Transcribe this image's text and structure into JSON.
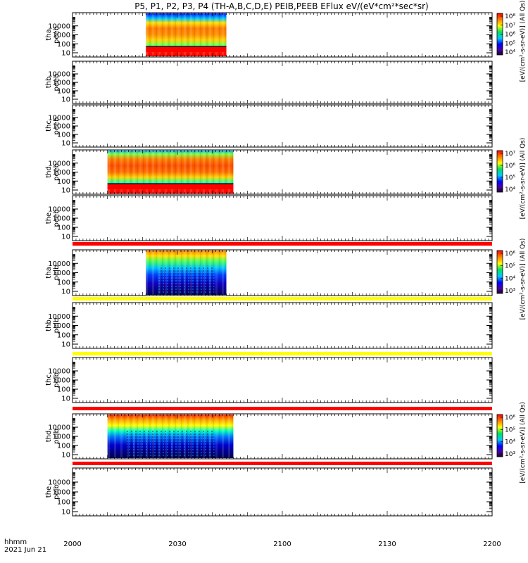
{
  "title": "P5, P1, P2, P3, P4 (TH-A,B,C,D,E) PEIB,PEEB EFlux eV/(eV*cm²*sec*sr)",
  "chart_data": {
    "type": "heatmap",
    "x_axis": {
      "range": [
        "2000",
        "2200"
      ],
      "tick_labels": [
        "2000",
        "2030",
        "2100",
        "2130",
        "2200"
      ],
      "label_line1": "hhmm",
      "label_line2": "2021 Jun 21"
    },
    "y_tick_labels": [
      "10",
      "100",
      "1000",
      "10000"
    ],
    "y_scale": "log",
    "panels": [
      {
        "label_top": "tha",
        "label_bottom": "peeb",
        "colorbar": true,
        "has_data": true,
        "data_start": "2021",
        "data_end": "2044",
        "bar": null
      },
      {
        "label_top": "thb",
        "label_bottom": "peeb",
        "colorbar": false,
        "has_data": false,
        "bar": null
      },
      {
        "label_top": "thc",
        "label_bottom": "peeb",
        "colorbar": false,
        "has_data": false,
        "bar": null
      },
      {
        "label_top": "thd",
        "label_bottom": "peeb",
        "colorbar": true,
        "has_data": true,
        "data_start": "2010",
        "data_end": "2046",
        "bar": null
      },
      {
        "label_top": "the",
        "label_bottom": "peeb",
        "colorbar": false,
        "has_data": false,
        "bar": "red"
      },
      {
        "label_top": "tha",
        "label_bottom": "peib",
        "colorbar": true,
        "has_data": true,
        "data_start": "2021",
        "data_end": "2044",
        "bar": "yellow"
      },
      {
        "label_top": "thb",
        "label_bottom": "peib",
        "colorbar": false,
        "has_data": false,
        "bar": "yellow"
      },
      {
        "label_top": "thc",
        "label_bottom": "peib",
        "colorbar": false,
        "has_data": false,
        "bar": "red"
      },
      {
        "label_top": "thd",
        "label_bottom": "peib",
        "colorbar": true,
        "has_data": true,
        "data_start": "2010",
        "data_end": "2046",
        "bar": "red"
      },
      {
        "label_top": "the",
        "label_bottom": "peib",
        "colorbar": false,
        "has_data": false,
        "bar": null
      }
    ],
    "colorbars": [
      {
        "ticks": [
          "10⁸",
          "10⁷",
          "10⁶",
          "10⁵",
          "10⁴"
        ]
      },
      {
        "ticks": [
          "10⁷",
          "10⁶",
          "10⁵",
          "10⁴"
        ]
      },
      {
        "ticks": [
          "10⁶",
          "10⁵",
          "10⁴",
          "10³"
        ]
      },
      {
        "ticks": [
          "10⁶",
          "10⁵",
          "10⁴",
          "10³"
        ]
      }
    ],
    "colorbar_labels": [
      "[eV/(cm²-s-sr-eV)] (All Qs)",
      "[eV/(cm²-s-sr-eV)] (All Qs)",
      "[eV/(cm²-s-sr-eV)] (All Qs)",
      "[eV/(cm²-s-sr-eV)] (All Qs)"
    ],
    "colors": {
      "red_bar": "#ff0000",
      "yellow_bar": "#ffff00"
    }
  }
}
